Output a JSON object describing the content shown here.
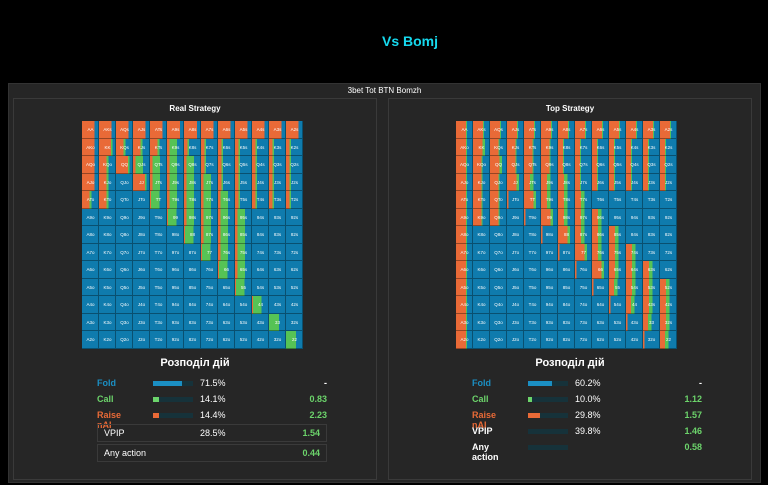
{
  "title": "Vs Bomj",
  "outer_title": "3bet Tot BTN Bomzh",
  "colors": {
    "fold": "#0f7bad",
    "call": "#56c355",
    "raise": "#e96a37"
  },
  "ranks": [
    "A",
    "K",
    "Q",
    "J",
    "T",
    "9",
    "8",
    "7",
    "6",
    "5",
    "4",
    "3",
    "2"
  ],
  "panels": [
    {
      "title": "Real Strategy",
      "section_title": "Розподіл дій",
      "stats": [
        {
          "label": "Fold",
          "pct": "71.5%",
          "value": "-",
          "fraction": 0.715
        },
        {
          "label": "Call",
          "pct": "14.1%",
          "value": "0.83",
          "fraction": 0.141
        },
        {
          "label": "Raise nAI",
          "pct": "14.4%",
          "value": "2.23",
          "fraction": 0.144
        }
      ],
      "vpip": {
        "label": "VPIP",
        "pct": "28.5%",
        "value": "1.54"
      },
      "any_action": {
        "label": "Any action",
        "value": "0.44"
      }
    },
    {
      "title": "Top Strategy",
      "section_title": "Розподіл дій",
      "stats": [
        {
          "label": "Fold",
          "pct": "60.2%",
          "value": "-",
          "fraction": 0.602
        },
        {
          "label": "Call",
          "pct": "10.0%",
          "value": "1.12",
          "fraction": 0.1
        },
        {
          "label": "Raise nAI",
          "pct": "29.8%",
          "value": "1.57",
          "fraction": 0.298
        }
      ],
      "vpip": {
        "label": "VPIP",
        "pct": "39.8%",
        "value": "1.46"
      },
      "any_action": {
        "label": "Any action",
        "value": "0.58"
      }
    }
  ]
}
